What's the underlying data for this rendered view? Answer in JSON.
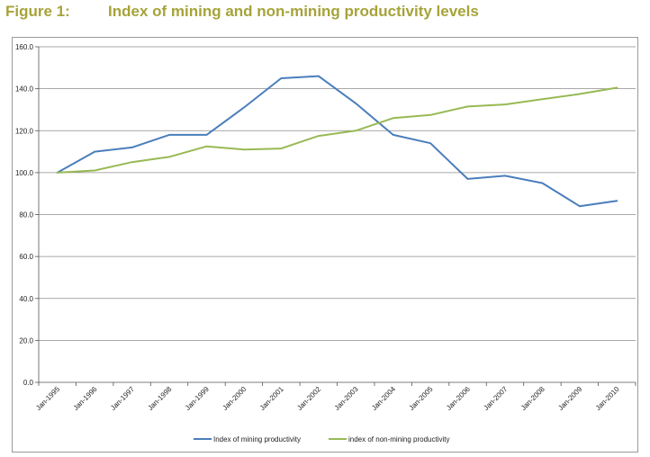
{
  "figure": {
    "label": "Figure 1:",
    "title": "Index of mining and non-mining productivity levels"
  },
  "colors": {
    "title": "#a6a33a",
    "mining": "#4a7ebb",
    "non_mining": "#98b954",
    "grid": "#8c8c8c"
  },
  "chart_data": {
    "type": "line",
    "title": "Index of mining and non-mining productivity levels",
    "xlabel": "",
    "ylabel": "",
    "ylim": [
      0,
      160
    ],
    "y_ticks": [
      "0.0",
      "20.0",
      "40.0",
      "60.0",
      "80.0",
      "100.0",
      "120.0",
      "140.0",
      "160.0"
    ],
    "y_tick_values": [
      0,
      20,
      40,
      60,
      80,
      100,
      120,
      140,
      160
    ],
    "grid": true,
    "legend_position": "bottom",
    "categories": [
      "Jan-1995",
      "Jan-1996",
      "Jan-1997",
      "Jan-1998",
      "Jan-1999",
      "Jan-2000",
      "Jan-2001",
      "Jan-2002",
      "Jan-2003",
      "Jan-2004",
      "Jan-2005",
      "Jan-2006",
      "Jan-2007",
      "Jan-2008",
      "Jan-2009",
      "Jan-2010"
    ],
    "series": [
      {
        "name": "Index of mining productivity",
        "color": "#4a7ebb",
        "values": [
          100,
          110,
          112,
          118,
          118,
          131,
          145,
          146,
          133,
          118,
          114,
          97,
          98.5,
          95,
          84,
          86.5
        ]
      },
      {
        "name": "index of non-mining productivity",
        "color": "#98b954",
        "values": [
          100,
          101,
          105,
          107.5,
          112.5,
          111,
          111.5,
          117.5,
          120,
          126,
          127.5,
          131.5,
          132.5,
          135,
          137.5,
          140.5
        ]
      }
    ]
  }
}
